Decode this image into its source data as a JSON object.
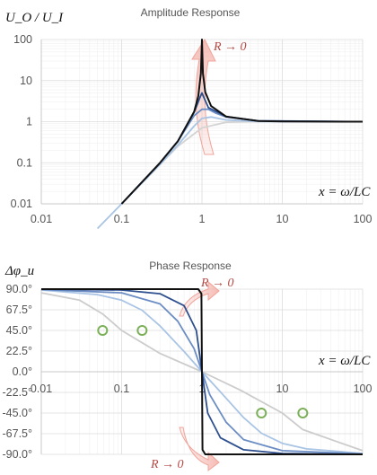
{
  "chart_data": [
    {
      "type": "line",
      "title": "Amplitude Response",
      "ylabel": "U_O / U_I",
      "xlabel": "x = ω/LC",
      "x_scale": "log",
      "y_scale": "log",
      "xlim": [
        0.01,
        100
      ],
      "ylim": [
        0.01,
        100
      ],
      "x_ticks": [
        "0.01",
        "0.1",
        "1",
        "10",
        "100"
      ],
      "y_ticks": [
        "0.01",
        "0.1",
        "1",
        "10",
        "100"
      ],
      "grid": true,
      "legend": "none",
      "annotation": "R → 0",
      "series": [
        {
          "color": "#d4d4d4",
          "points": [
            [
              0.2,
              0.04
            ],
            [
              0.5,
              0.25
            ],
            [
              1,
              0.707
            ],
            [
              2,
              0.97
            ],
            [
              5,
              1.0
            ],
            [
              10,
              1.0
            ],
            [
              100,
              1.0
            ]
          ]
        },
        {
          "color": "#a9c4e4",
          "points": [
            [
              0.05,
              0.0025
            ],
            [
              0.1,
              0.01
            ],
            [
              0.3,
              0.09
            ],
            [
              0.5,
              0.27
            ],
            [
              0.8,
              0.78
            ],
            [
              1,
              1.2
            ],
            [
              1.3,
              1.3
            ],
            [
              2,
              1.1
            ],
            [
              5,
              1.01
            ],
            [
              100,
              1.0
            ]
          ]
        },
        {
          "color": "#6b8dc4",
          "points": [
            [
              0.1,
              0.01
            ],
            [
              0.3,
              0.098
            ],
            [
              0.5,
              0.33
            ],
            [
              0.8,
              1.4
            ],
            [
              1,
              2.0
            ],
            [
              1.2,
              2.0
            ],
            [
              1.5,
              1.6
            ],
            [
              2,
              1.3
            ],
            [
              5,
              1.05
            ],
            [
              100,
              1.0
            ]
          ]
        },
        {
          "color": "#2e4f8e",
          "points": [
            [
              0.1,
              0.01
            ],
            [
              0.3,
              0.099
            ],
            [
              0.5,
              0.33
            ],
            [
              0.8,
              1.7
            ],
            [
              0.95,
              4.0
            ],
            [
              1,
              5.0
            ],
            [
              1.05,
              4.0
            ],
            [
              1.2,
              2.2
            ],
            [
              2,
              1.33
            ],
            [
              5,
              1.04
            ],
            [
              100,
              1.0
            ]
          ]
        },
        {
          "color": "#111111",
          "points": [
            [
              0.1,
              0.01
            ],
            [
              0.3,
              0.099
            ],
            [
              0.5,
              0.333
            ],
            [
              0.8,
              1.75
            ],
            [
              0.9,
              4.2
            ],
            [
              0.97,
              15
            ],
            [
              1,
              100
            ],
            [
              1.03,
              15
            ],
            [
              1.1,
              5.2
            ],
            [
              1.3,
              2.4
            ],
            [
              2,
              1.33
            ],
            [
              5,
              1.04
            ],
            [
              10,
              1.01
            ],
            [
              100,
              1.0
            ]
          ]
        }
      ]
    },
    {
      "type": "line",
      "title": "Phase Response",
      "ylabel": "Δφ_u",
      "xlabel": "x = ω/LC",
      "x_scale": "log",
      "xlim": [
        0.01,
        100
      ],
      "ylim": [
        -90,
        90
      ],
      "x_ticks": [
        "0.01",
        "0.1",
        "1",
        "10",
        "100"
      ],
      "y_ticks": [
        "90.0°",
        "67.5°",
        "45.0°",
        "22.5°",
        "0.0°",
        "-22.5°",
        "-45.0°",
        "-67.5°",
        "-90.0°"
      ],
      "grid": true,
      "legend": "none",
      "annotation": "R → 0",
      "markers": [
        [
          0.058,
          45
        ],
        [
          0.18,
          45
        ],
        [
          5.5,
          -45
        ],
        [
          18,
          -45
        ]
      ],
      "series": [
        {
          "color": "#cccccc",
          "points": [
            [
              0.01,
              86
            ],
            [
              0.03,
              78
            ],
            [
              0.058,
              63
            ],
            [
              0.1,
              45
            ],
            [
              0.3,
              20
            ],
            [
              1,
              0
            ],
            [
              3,
              -20
            ],
            [
              10,
              -45
            ],
            [
              18,
              -63
            ],
            [
              100,
              -86
            ]
          ]
        },
        {
          "color": "#a9c4e4",
          "points": [
            [
              0.01,
              89
            ],
            [
              0.05,
              84
            ],
            [
              0.1,
              78
            ],
            [
              0.18,
              67
            ],
            [
              0.3,
              50
            ],
            [
              0.6,
              22
            ],
            [
              1,
              0
            ],
            [
              1.7,
              -22
            ],
            [
              3.3,
              -50
            ],
            [
              5.5,
              -67
            ],
            [
              10,
              -78
            ],
            [
              20,
              -84
            ],
            [
              100,
              -89
            ]
          ]
        },
        {
          "color": "#6b8dc4",
          "points": [
            [
              0.01,
              89.5
            ],
            [
              0.1,
              86
            ],
            [
              0.3,
              74
            ],
            [
              0.5,
              55
            ],
            [
              0.8,
              25
            ],
            [
              1,
              0
            ],
            [
              1.25,
              -25
            ],
            [
              2,
              -55
            ],
            [
              3.3,
              -74
            ],
            [
              10,
              -86
            ],
            [
              100,
              -89.5
            ]
          ]
        },
        {
          "color": "#2e4f8e",
          "points": [
            [
              0.01,
              90
            ],
            [
              0.1,
              89
            ],
            [
              0.3,
              85
            ],
            [
              0.6,
              72
            ],
            [
              0.85,
              45
            ],
            [
              1,
              0
            ],
            [
              1.18,
              -45
            ],
            [
              1.7,
              -72
            ],
            [
              3.3,
              -85
            ],
            [
              10,
              -89
            ],
            [
              100,
              -90
            ]
          ]
        },
        {
          "color": "#111111",
          "points": [
            [
              0.01,
              90
            ],
            [
              0.9,
              90
            ],
            [
              0.985,
              85
            ],
            [
              1,
              0
            ],
            [
              1.015,
              -85
            ],
            [
              1.1,
              -90
            ],
            [
              100,
              -90
            ]
          ]
        }
      ]
    }
  ]
}
